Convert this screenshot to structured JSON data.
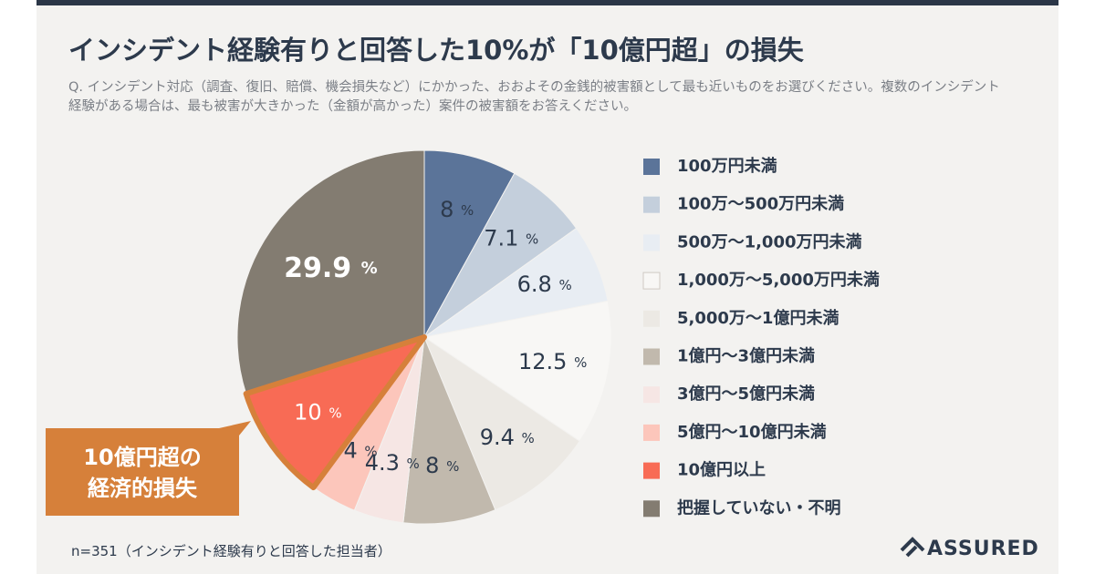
{
  "chart_data": {
    "type": "pie",
    "title": "インシデント経験有りと回答した10%が「10億円超」の損失",
    "subtitle": "Q. インシデント対応（調査、復旧、賠償、機会損失など）にかかった、おおよその金銭的被害額として最も近いものをお選びください。複数のインシデント経験がある場合は、最も被害が大きかった（金額が高かった）案件の被害額をお答えください。",
    "categories": [
      "100万円未満",
      "100万〜500万円未満",
      "500万〜1,000万円未満",
      "1,000万〜5,000万円未満",
      "5,000万〜1億円未満",
      "1億円〜3億円未満",
      "3億円〜5億円未満",
      "5億円〜10億円未満",
      "10億円以上",
      "把握していない・不明"
    ],
    "values": [
      8,
      7.1,
      6.8,
      12.5,
      9.4,
      8,
      4.3,
      4,
      10,
      29.9
    ],
    "value_labels": [
      "8 %",
      "7.1 %",
      "6.8 %",
      "12.5 %",
      "9.4 %",
      "8 %",
      "4.3 %",
      "4 %",
      "10 %",
      "29.9 %"
    ],
    "colors": [
      "#5b7499",
      "#c4cfdc",
      "#e8edf3",
      "#f8f7f5",
      "#ece9e4",
      "#c1b9ad",
      "#f6e6e4",
      "#fcc6bb",
      "#f86b55",
      "#837c71"
    ],
    "label_colors": [
      "#2d3a4c",
      "#2d3a4c",
      "#2d3a4c",
      "#2d3a4c",
      "#2d3a4c",
      "#2d3a4c",
      "#2d3a4c",
      "#2d3a4c",
      "#ffffff",
      "#ffffff"
    ],
    "highlight": "10億円以上",
    "highlight_color": "#d6803a",
    "callout": [
      "10億円超の",
      "経済的損失"
    ],
    "legend": "right",
    "footnote": "n=351（インシデント経験有りと回答した担当者）",
    "logo": "ASSURED"
  }
}
